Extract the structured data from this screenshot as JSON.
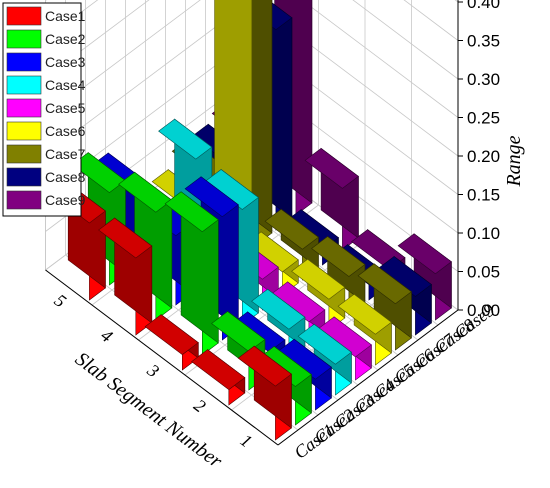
{
  "chart_data": {
    "type": "bar3d",
    "title": "",
    "xlabel": "Slab Segment Number",
    "ylabel": "",
    "zlabel": "Range",
    "segments": [
      "1",
      "2",
      "3",
      "4",
      "5"
    ],
    "cases": [
      "Case1",
      "Case2",
      "Case3",
      "Case4",
      "Case5",
      "Case6",
      "Case7",
      "Case8",
      "Case9"
    ],
    "zlim": [
      0,
      0.42
    ],
    "zticks": [
      "0.00",
      "0.05",
      "0.10",
      "0.15",
      "0.20",
      "0.25",
      "0.30",
      "0.35",
      "0.40"
    ],
    "legend_position": "top-left",
    "series": [
      {
        "name": "Case1",
        "color": "#ff0000",
        "values": [
          0.07,
          0.02,
          0.02,
          0.1,
          0.1
        ]
      },
      {
        "name": "Case2",
        "color": "#00ff00",
        "values": [
          0.05,
          0.05,
          0.16,
          0.14,
          0.12
        ]
      },
      {
        "name": "Case3",
        "color": "#0000ff",
        "values": [
          0.04,
          0.03,
          0.16,
          0.09,
          0.1
        ]
      },
      {
        "name": "Case4",
        "color": "#00ffff",
        "values": [
          0.04,
          0.04,
          0.15,
          0.17,
          0.04
        ]
      },
      {
        "name": "Case5",
        "color": "#ff00ff",
        "values": [
          0.03,
          0.03,
          0.04,
          0.03,
          0.01
        ]
      },
      {
        "name": "Case6",
        "color": "#ffff00",
        "values": [
          0.04,
          0.04,
          0.03,
          0.37,
          0.02
        ]
      },
      {
        "name": "Case7",
        "color": "#808000",
        "values": [
          0.06,
          0.05,
          0.04,
          0.35,
          0.04
        ]
      },
      {
        "name": "Case8",
        "color": "#000080",
        "values": [
          0.05,
          0.02,
          0.02,
          0.26,
          0.04
        ]
      },
      {
        "name": "Case9",
        "color": "#800080",
        "values": [
          0.06,
          0.02,
          0.08,
          0.39,
          0.05
        ]
      }
    ]
  }
}
